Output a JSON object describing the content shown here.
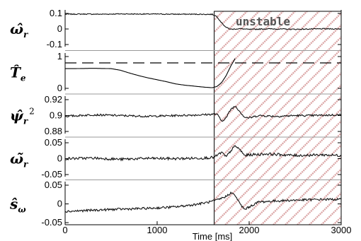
{
  "chart_data": {
    "type": "line",
    "xlabel": "Time [ms]",
    "xlim": [
      0,
      3000
    ],
    "x_ticks": [
      "0",
      "1000",
      "2000",
      "3000"
    ],
    "annotation": "unstable",
    "unstable_region": [
      1620,
      3000
    ],
    "panels": [
      {
        "id": "omega_r_hat",
        "ylabel": "ω̂",
        "ylabel_sub": "r",
        "ylim": [
          -0.1,
          0.1
        ],
        "y_ticks": [
          "0.1",
          "0",
          "-0.1"
        ],
        "y_tick_values": [
          0.1,
          0,
          -0.1
        ],
        "series": [
          {
            "x": [
              0,
              200,
              400,
              600,
              800,
              1000,
              1200,
              1400,
              1600,
              1650,
              1700,
              1750,
              1800,
              1900,
              2000,
              2200,
              2500,
              2800,
              3000
            ],
            "y": [
              0.095,
              0.096,
              0.095,
              0.097,
              0.096,
              0.096,
              0.095,
              0.095,
              0.094,
              0.08,
              0.04,
              0.01,
              -0.002,
              0.002,
              -0.003,
              0.001,
              -0.002,
              0.001,
              0.0
            ],
            "noise": 0.003
          }
        ]
      },
      {
        "id": "T_e_hat",
        "ylabel": "T̂",
        "ylabel_sub": "e",
        "ylim": [
          0,
          1
        ],
        "y_ticks": [
          "1",
          "0"
        ],
        "y_tick_values": [
          1,
          0
        ],
        "reference_level": 0.8,
        "series": [
          {
            "x": [
              0,
              100,
              300,
              500,
              600,
              700,
              800,
              900,
              1000,
              1100,
              1200,
              1300,
              1400,
              1500,
              1600,
              1650,
              1700,
              1750,
              1800,
              1850
            ],
            "y": [
              0.62,
              0.62,
              0.63,
              0.62,
              0.57,
              0.48,
              0.4,
              0.33,
              0.27,
              0.21,
              0.14,
              0.1,
              0.07,
              0.04,
              0.02,
              0.06,
              0.18,
              0.4,
              0.7,
              0.95
            ],
            "noise": 0.0
          }
        ]
      },
      {
        "id": "psi_r_hat_sq",
        "ylabel": "ψ̂",
        "ylabel_sub": "r",
        "ylabel_sup": "2",
        "ylim": [
          0.88,
          0.92
        ],
        "y_ticks": [
          "0.92",
          "0.9",
          "0.88"
        ],
        "y_tick_values": [
          0.92,
          0.9,
          0.88
        ],
        "series": [
          {
            "x": [
              0,
              300,
              600,
              900,
              1200,
              1500,
              1650,
              1700,
              1750,
              1800,
              1850,
              1900,
              1950,
              2000,
              2100,
              2300,
              2500,
              2700,
              3000
            ],
            "y": [
              0.899,
              0.901,
              0.9,
              0.899,
              0.9,
              0.901,
              0.902,
              0.893,
              0.897,
              0.908,
              0.912,
              0.905,
              0.898,
              0.897,
              0.9,
              0.899,
              0.9,
              0.9,
              0.901
            ],
            "noise": 0.0012
          }
        ]
      },
      {
        "id": "omega_r_tilde",
        "ylabel": "ω̃",
        "ylabel_sub": "r",
        "ylim": [
          -0.05,
          0.05
        ],
        "y_ticks": [
          "0.05",
          "0",
          "-0.05"
        ],
        "y_tick_values": [
          0.05,
          0,
          -0.05
        ],
        "series": [
          {
            "x": [
              0,
              300,
              600,
              900,
              1200,
              1500,
              1620,
              1700,
              1750,
              1800,
              1850,
              1900,
              1950,
              2000,
              2200,
              2500,
              2800,
              3000
            ],
            "y": [
              0.0,
              0.002,
              -0.002,
              0.001,
              0.0,
              0.002,
              0.004,
              0.02,
              0.005,
              0.025,
              0.04,
              0.028,
              0.01,
              0.012,
              0.015,
              0.01,
              0.012,
              0.01
            ],
            "noise": 0.004
          }
        ]
      },
      {
        "id": "s_omega_hat",
        "ylabel": "ŝ",
        "ylabel_sub": "ω",
        "ylim": [
          -0.05,
          0.05
        ],
        "y_ticks": [
          "0.05",
          "0",
          "-0.05"
        ],
        "y_tick_values": [
          0.05,
          0,
          -0.05
        ],
        "series": [
          {
            "x": [
              0,
              300,
              600,
              900,
              1200,
              1400,
              1550,
              1650,
              1750,
              1800,
              1850,
              1900,
              1950,
              2000,
              2100,
              2300,
              2500,
              2800,
              3000
            ],
            "y": [
              -0.02,
              -0.017,
              -0.014,
              -0.012,
              -0.008,
              -0.002,
              0.004,
              0.01,
              0.02,
              0.03,
              0.022,
              0.0,
              -0.015,
              -0.008,
              0.005,
              0.008,
              0.01,
              0.012,
              0.012
            ],
            "noise": 0.003
          }
        ]
      }
    ]
  }
}
